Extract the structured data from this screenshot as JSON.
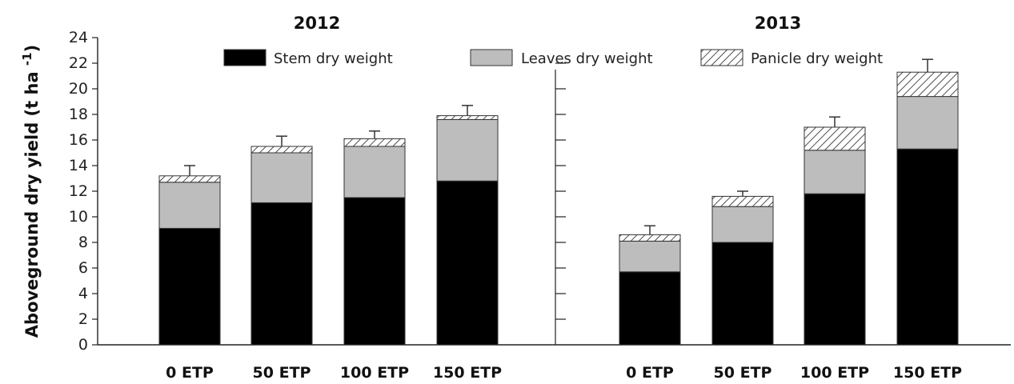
{
  "chart_data": {
    "type": "bar",
    "stacked": true,
    "ylabel": "Aboveground dry yield (t ha",
    "ylabel_superscript": "-1",
    "ylabel_suffix": ")",
    "ylim": [
      0,
      24
    ],
    "yticks": [
      0,
      2,
      4,
      6,
      8,
      10,
      12,
      14,
      16,
      18,
      20,
      22,
      24
    ],
    "categories": [
      "0 ETP",
      "50 ETP",
      "100 ETP",
      "150 ETP"
    ],
    "legend": {
      "placement": "top",
      "entries": [
        {
          "name": "Stem dry weight",
          "pattern": "solid-black"
        },
        {
          "name": "Leaves dry weight",
          "pattern": "solid-gray"
        },
        {
          "name": "Panicle dry weight",
          "pattern": "hatched"
        }
      ]
    },
    "panels": [
      {
        "title": "2012",
        "series": [
          {
            "name": "Stem dry weight",
            "values": [
              9.1,
              11.1,
              11.5,
              12.8
            ]
          },
          {
            "name": "Leaves dry weight",
            "values": [
              3.6,
              3.9,
              4.0,
              4.8
            ]
          },
          {
            "name": "Panicle dry weight",
            "values": [
              0.5,
              0.5,
              0.6,
              0.3
            ]
          }
        ],
        "error_bars": [
          0.8,
          0.8,
          0.6,
          0.8
        ]
      },
      {
        "title": "2013",
        "series": [
          {
            "name": "Stem dry weight",
            "values": [
              5.7,
              8.0,
              11.8,
              15.3
            ]
          },
          {
            "name": "Leaves dry weight",
            "values": [
              2.4,
              2.8,
              3.4,
              4.1
            ]
          },
          {
            "name": "Panicle dry weight",
            "values": [
              0.5,
              0.8,
              1.8,
              1.9
            ]
          }
        ],
        "error_bars": [
          0.7,
          0.4,
          0.8,
          1.0
        ]
      }
    ],
    "colors": {
      "stem": "#000000",
      "leaves": "#bdbdbd",
      "panicle_bg": "#ffffff",
      "outline": "#333333"
    }
  }
}
